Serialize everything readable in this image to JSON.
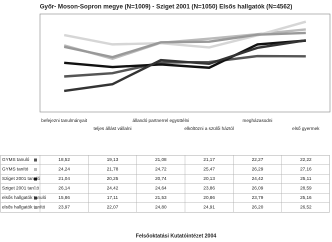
{
  "chart_data": {
    "type": "line",
    "title": "Győr- Moson-Sopron megye (N=1009) - Sziget 2001 (N=1050) Elsős hallgatók (N=4562)",
    "footer": "Felsőoktatási Kutatóintézet  2004",
    "categories": [
      "befejezni tanulmányait",
      "teljes állást vállalni",
      "állandó partnerrel együttélni",
      "elköltözni a szülői háztól",
      "megházasodni",
      "első gyermek"
    ],
    "ylim": [
      12,
      30
    ],
    "series": [
      {
        "name": "GYMS tanuló",
        "color": "#555555",
        "values": [
          18.52,
          19.13,
          21.08,
          21.17,
          22.27,
          22.22
        ],
        "value_labels": [
          "18,52",
          "19,13",
          "21,08",
          "21,17",
          "22,27",
          "22,22"
        ]
      },
      {
        "name": "GYMS tanító",
        "color": "#bbbbbb",
        "values": [
          24.24,
          21.78,
          24.72,
          25.47,
          26.29,
          27.16
        ],
        "value_labels": [
          "24,24",
          "21,78",
          "24,72",
          "25,47",
          "26,29",
          "27,16"
        ]
      },
      {
        "name": "Sziget 2001 tanuló",
        "color": "#111111",
        "values": [
          21.04,
          20.25,
          20.74,
          20.13,
          24.42,
          25.11
        ],
        "value_labels": [
          "21,04",
          "20,25",
          "20,74",
          "20,13",
          "24,42",
          "25,11"
        ]
      },
      {
        "name": "Sziget 2001 tanító",
        "color": "#d6d6d6",
        "values": [
          26.14,
          24.42,
          24.64,
          23.86,
          26.09,
          28.59
        ],
        "value_labels": [
          "26,14",
          "24,42",
          "24,64",
          "23,86",
          "26,09",
          "28,59"
        ]
      },
      {
        "name": "elsős hallgatók tanuló",
        "color": "#333333",
        "values": [
          15.86,
          17.11,
          21.53,
          20.86,
          23.79,
          25.16
        ],
        "value_labels": [
          "15,86",
          "17,11",
          "21,53",
          "20,86",
          "23,79",
          "25,16"
        ]
      },
      {
        "name": "elsős hallgatók tanító",
        "color": "#999999",
        "values": [
          23.97,
          22.07,
          24.8,
          24.91,
          26.2,
          26.52
        ],
        "value_labels": [
          "23,97",
          "22,07",
          "24,80",
          "24,91",
          "26,20",
          "26,52"
        ]
      }
    ]
  }
}
